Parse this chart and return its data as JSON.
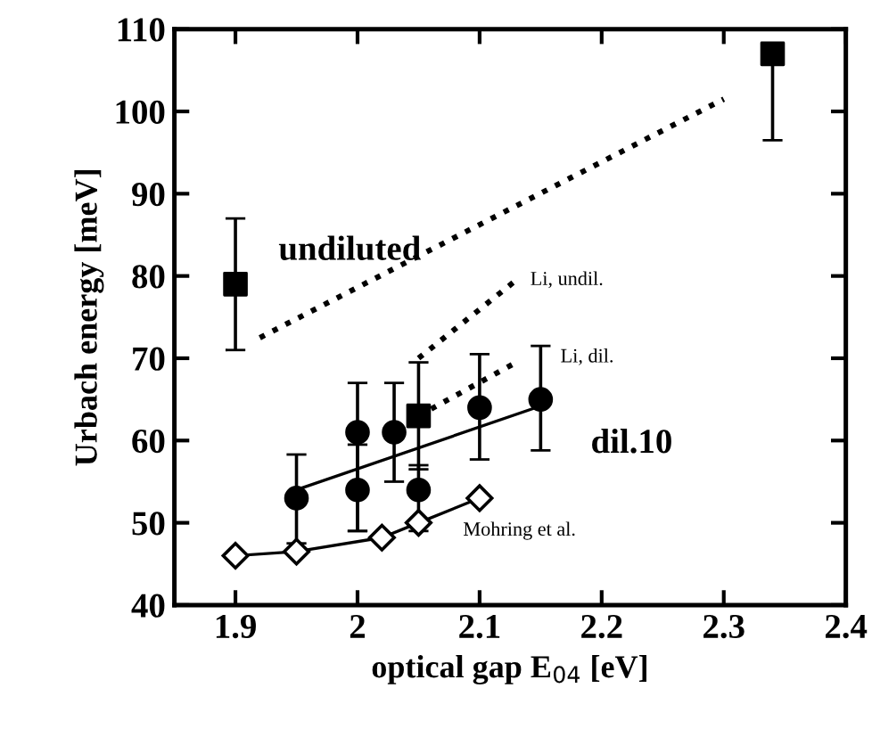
{
  "chart_data": {
    "type": "scatter",
    "xlabel": "optical gap E$_{04}$ [eV]",
    "ylabel": "Urbach energy [meV]",
    "xlim": [
      1.85,
      2.4
    ],
    "ylim": [
      40,
      110
    ],
    "xticks": [
      1.9,
      2,
      2.1,
      2.2,
      2.3,
      2.4
    ],
    "yticks": [
      40,
      50,
      60,
      70,
      80,
      90,
      100,
      110
    ],
    "grid": false,
    "series": [
      {
        "type": "line",
        "color": "#000000",
        "line_style": "dotted",
        "marker": "none",
        "x": [
          1.92,
          2.3
        ],
        "values": [
          72.5,
          101.5
        ]
      },
      {
        "type": "line",
        "color": "#000000",
        "line_style": "dotted",
        "marker": "none",
        "x": [
          2.05,
          2.13
        ],
        "values": [
          70,
          79.5
        ]
      },
      {
        "type": "line",
        "color": "#000000",
        "line_style": "dotted",
        "marker": "none",
        "x": [
          2.05,
          2.13
        ],
        "values": [
          63,
          69.5
        ]
      },
      {
        "type": "line",
        "color": "#000000",
        "line_style": "solid",
        "marker": "none",
        "x": [
          1.95,
          2.15
        ],
        "values": [
          54,
          64.2
        ]
      },
      {
        "type": "line",
        "color": "#000000",
        "line_style": "solid",
        "marker": "diamond",
        "x": [
          1.9,
          1.95,
          2.02,
          2.05,
          2.1
        ],
        "values": [
          46,
          46.5,
          48.2,
          50,
          53
        ]
      },
      {
        "color": "#000000",
        "marker": "circle",
        "x": [
          1.95,
          2.0,
          2.0,
          2.03,
          2.05,
          2.1,
          2.15
        ],
        "values": [
          53,
          61,
          54,
          61,
          54,
          64,
          65
        ],
        "errors": [
          [
            47.5,
            58.3
          ],
          [
            49,
            67
          ],
          [
            49,
            59.5
          ],
          [
            55,
            67
          ],
          [
            49,
            57
          ],
          [
            57.7,
            70.5
          ],
          [
            58.8,
            71.5
          ]
        ]
      },
      {
        "color": "#000000",
        "marker": "square",
        "x": [
          1.9,
          2.05,
          2.34
        ],
        "values": [
          79,
          63,
          107
        ],
        "errors": [
          [
            71,
            87
          ],
          [
            56.5,
            69.5
          ],
          [
            96.5,
            107
          ]
        ]
      }
    ],
    "annotations": [
      "undiluted",
      "dil.10",
      "Mohring et al.",
      "Li, undil.",
      "Li, dil."
    ]
  }
}
